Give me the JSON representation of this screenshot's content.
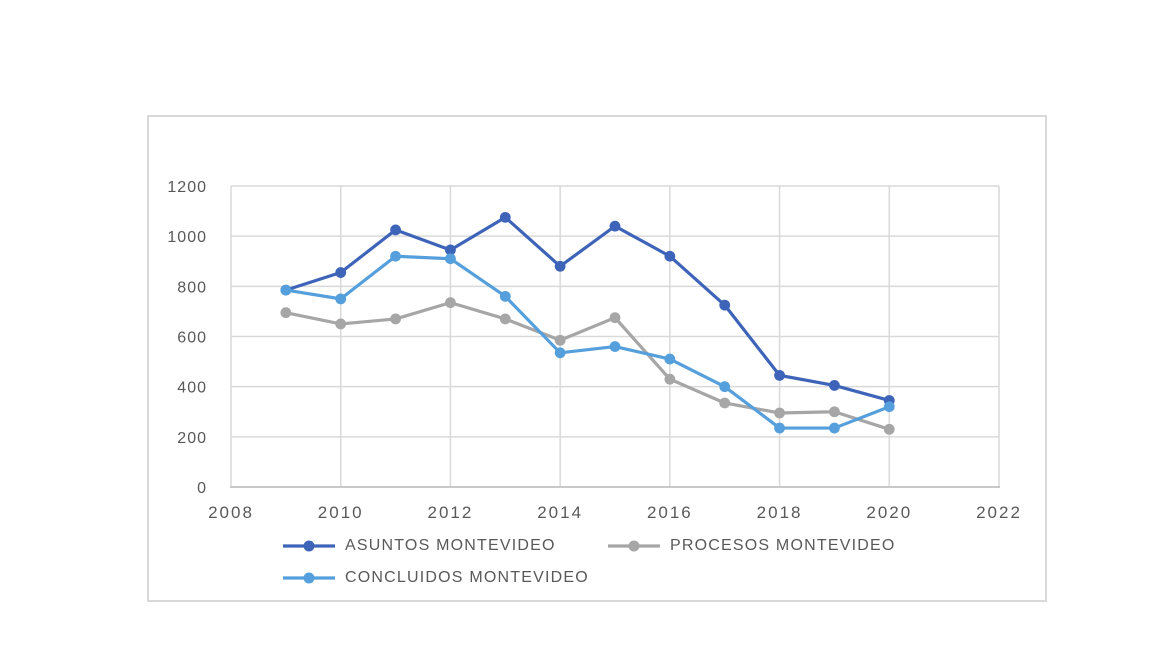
{
  "chart_data": {
    "type": "line",
    "title": "",
    "xlabel": "",
    "ylabel": "",
    "x": [
      2009,
      2010,
      2011,
      2012,
      2013,
      2014,
      2015,
      2016,
      2017,
      2018,
      2019,
      2020
    ],
    "series": [
      {
        "name": "ASUNTOS MONTEVIDEO",
        "color": "#3E64B9",
        "values": [
          785,
          855,
          1025,
          945,
          1075,
          880,
          1040,
          920,
          725,
          445,
          405,
          345
        ]
      },
      {
        "name": "PROCESOS MONTEVIDEO",
        "color": "#A6A6A6",
        "values": [
          695,
          650,
          670,
          735,
          670,
          585,
          675,
          430,
          335,
          295,
          300,
          230
        ]
      },
      {
        "name": "CONCLUIDOS MONTEVIDEO",
        "color": "#55A0DC",
        "values": [
          785,
          750,
          920,
          910,
          760,
          535,
          560,
          510,
          400,
          235,
          235,
          320
        ]
      }
    ],
    "xlim": [
      2008,
      2022
    ],
    "ylim": [
      0,
      1200
    ],
    "x_ticks": [
      2008,
      2010,
      2012,
      2014,
      2016,
      2018,
      2020,
      2022
    ],
    "y_ticks": [
      0,
      200,
      400,
      600,
      800,
      1000,
      1200
    ],
    "grid": true,
    "legend_position": "bottom"
  },
  "styles": {
    "grid_color": "#D9D9D9",
    "axis_color": "#C9C9C9",
    "tick_label_color": "#595959",
    "legend_text_color": "#595959",
    "chart_border_color": "#D9D9D9",
    "background": "#FFFFFF"
  }
}
